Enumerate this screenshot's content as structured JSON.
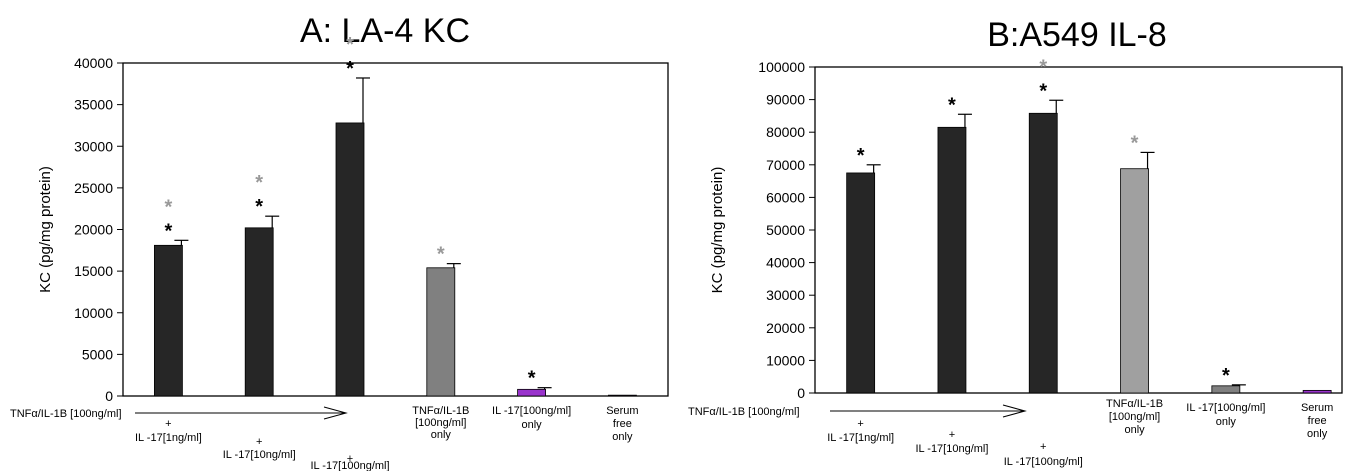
{
  "chart_data": [
    {
      "type": "bar",
      "title": "A: LA-4 KC",
      "ylabel": "KC (pg/mg protein)",
      "ylim": [
        0,
        40000
      ],
      "yticks": [
        0,
        5000,
        10000,
        15000,
        20000,
        25000,
        30000,
        35000,
        40000
      ],
      "grid": false,
      "arrow_label": "TNFα/IL-1B [100ng/ml]",
      "categories": [
        [
          "+",
          "IL -17[1ng/ml]"
        ],
        [
          "+",
          "IL -17[10ng/ml]"
        ],
        [
          "+",
          "IL -17[100ng/ml]"
        ],
        [
          "TNFα/IL-1B",
          "[100ng/ml]",
          "only"
        ],
        [
          "IL -17[100ng/ml]",
          "only"
        ],
        [
          "Serum",
          "free",
          "only"
        ]
      ],
      "values": [
        18100,
        20200,
        32800,
        15400,
        800,
        100
      ],
      "errors": [
        600,
        1400,
        5400,
        500,
        200,
        0
      ],
      "colors": [
        "#262626",
        "#262626",
        "#262626",
        "#808080",
        "#9933cc",
        "#a040c8"
      ],
      "markers": [
        {
          "bar": 0,
          "black": true,
          "gray": true
        },
        {
          "bar": 1,
          "black": true,
          "gray": true
        },
        {
          "bar": 2,
          "black": true,
          "gray": true
        },
        {
          "bar": 3,
          "black": false,
          "gray": true
        },
        {
          "bar": 4,
          "black": true,
          "gray": false
        }
      ],
      "marker_symbol": "*"
    },
    {
      "type": "bar",
      "title": "B:A549 IL-8",
      "ylabel": "KC (pg/mg protein)",
      "ylim": [
        0,
        100000
      ],
      "yticks": [
        0,
        10000,
        20000,
        30000,
        40000,
        50000,
        60000,
        70000,
        80000,
        90000,
        100000
      ],
      "grid": false,
      "arrow_label": "TNFα/IL-1B [100ng/ml]",
      "categories": [
        [
          "+",
          "IL -17[1ng/ml]"
        ],
        [
          "+",
          "IL -17[10ng/ml]"
        ],
        [
          "+",
          "IL -17[100ng/ml]"
        ],
        [
          "TNFα/IL-1B",
          "[100ng/ml]",
          "only"
        ],
        [
          "IL -17[100ng/ml]",
          "only"
        ],
        [
          "Serum",
          "free",
          "only"
        ]
      ],
      "values": [
        67500,
        81500,
        85800,
        68800,
        2200,
        800
      ],
      "errors": [
        2500,
        4000,
        4000,
        5000,
        300,
        0
      ],
      "colors": [
        "#262626",
        "#262626",
        "#262626",
        "#a0a0a0",
        "#808080",
        "#9933cc"
      ],
      "markers": [
        {
          "bar": 0,
          "black": true,
          "gray": false
        },
        {
          "bar": 1,
          "black": true,
          "gray": false
        },
        {
          "bar": 2,
          "black": true,
          "gray": true
        },
        {
          "bar": 3,
          "black": false,
          "gray": true
        },
        {
          "bar": 4,
          "black": true,
          "gray": false
        }
      ],
      "marker_symbol": "*"
    }
  ]
}
